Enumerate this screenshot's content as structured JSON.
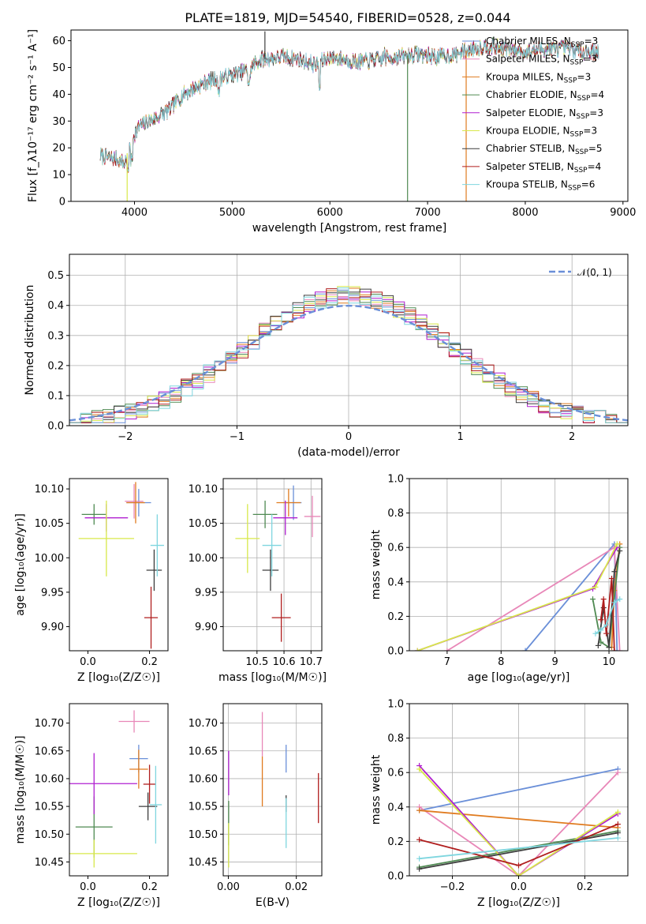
{
  "figure_title": "PLATE=1819, MJD=54540, FIBERID=0528, z=0.044",
  "colors": {
    "Chabrier MILES": "#6a8fd8",
    "Salpeter MILES": "#e887b8",
    "Kroupa MILES": "#e07b1f",
    "Chabrier ELODIE": "#4f8a52",
    "Salpeter ELODIE": "#b01fd0",
    "Kroupa ELODIE": "#d8e84a",
    "Chabrier STELIB": "#3d3d3d",
    "Salpeter STELIB": "#b01e1e",
    "Kroupa STELIB": "#7fd6df",
    "normal_curve": "#6a8fd8",
    "grid": "#b0b0b0"
  },
  "chart_data": [
    {
      "id": "spectrum",
      "type": "line",
      "title": "PLATE=1819, MJD=54540, FIBERID=0528, z=0.044",
      "xlabel": "wavelength [Angstrom, rest frame]",
      "ylabel": "Flux [f_λ10⁻¹⁷ erg cm⁻² s⁻¹ A⁻¹]",
      "xlim": [
        3350,
        9050
      ],
      "ylim": [
        0,
        64
      ],
      "xticks": [
        "4000",
        "5000",
        "6000",
        "7000",
        "8000",
        "9000"
      ],
      "yticks": [
        "0",
        "10",
        "20",
        "30",
        "40",
        "50",
        "60"
      ],
      "grid": false,
      "legend": "upper right",
      "legend_entries": [
        {
          "label": "Chabrier MILES, N",
          "sub": "SSP",
          "tail": "=3"
        },
        {
          "label": "Salpeter MILES, N",
          "sub": "SSP",
          "tail": "=3"
        },
        {
          "label": "Kroupa MILES, N",
          "sub": "SSP",
          "tail": "=3"
        },
        {
          "label": "Chabrier ELODIE, N",
          "sub": "SSP",
          "tail": "=4"
        },
        {
          "label": "Salpeter ELODIE, N",
          "sub": "SSP",
          "tail": "=3"
        },
        {
          "label": "Kroupa ELODIE, N",
          "sub": "SSP",
          "tail": "=3"
        },
        {
          "label": "Chabrier STELIB, N",
          "sub": "SSP",
          "tail": "=5"
        },
        {
          "label": "Salpeter STELIB, N",
          "sub": "SSP",
          "tail": "=4"
        },
        {
          "label": "Kroupa STELIB, N",
          "sub": "SSP",
          "tail": "=6"
        }
      ],
      "continuum": {
        "x": [
          3650,
          3800,
          3900,
          3950,
          4050,
          4200,
          4350,
          4500,
          4700,
          4850,
          5000,
          5150,
          5250,
          5300,
          5500,
          5700,
          5850,
          5900,
          6000,
          6300,
          6500,
          6700,
          6900,
          7100,
          7300,
          7450,
          7600,
          7800,
          8000,
          8200,
          8400,
          8600,
          8750
        ],
        "y": [
          17,
          16,
          14,
          22,
          28,
          31,
          34,
          40,
          44,
          46,
          47,
          49,
          52,
          53,
          54,
          53,
          51,
          52,
          54,
          52,
          53,
          54,
          55,
          54,
          55,
          57,
          58,
          57,
          56,
          57,
          57,
          56,
          56
        ]
      },
      "spikes": [
        {
          "x": 3925,
          "y": 0,
          "color": "#d8e84a"
        },
        {
          "x": 5335,
          "y": 63.5,
          "color": "#3d3d3d"
        },
        {
          "x": 6795,
          "y": 0,
          "color": "#4f8a52"
        },
        {
          "x": 7395,
          "y": 0,
          "color": "#e07b1f"
        }
      ]
    },
    {
      "id": "residuals",
      "type": "line",
      "xlabel": "(data-model)/error",
      "ylabel": "Normed distribution",
      "xlim": [
        -2.5,
        2.5
      ],
      "ylim": [
        0,
        0.57
      ],
      "xticks": [
        "−2",
        "−1",
        "0",
        "1",
        "2"
      ],
      "yticks": [
        "0.0",
        "0.1",
        "0.2",
        "0.3",
        "0.4",
        "0.5"
      ],
      "grid": true,
      "legend": "upper right",
      "legend_label": "𝒩(0, 1)",
      "hist_range": [
        -2.5,
        2.5
      ],
      "hist_bins": 50,
      "bin_width": 0.1
    },
    {
      "id": "age-vs-Z",
      "type": "scatter",
      "xlabel": "Z [log₁₀(Z/Z☉)]",
      "ylabel": "age  [log₁₀(age/yr)]",
      "xlim": [
        -0.06,
        0.26
      ],
      "ylim": [
        9.865,
        10.115
      ],
      "xticks": [
        "0.0",
        "0.2"
      ],
      "yticks": [
        "9.90",
        "9.95",
        "10.00",
        "10.05",
        "10.10"
      ],
      "grid": false,
      "points": [
        {
          "series": "Chabrier MILES",
          "x": 0.165,
          "y": 10.08,
          "xerr": 0.04,
          "yerr": 0.02
        },
        {
          "series": "Salpeter MILES",
          "x": 0.15,
          "y": 10.082,
          "xerr": 0.03,
          "yerr": 0.025
        },
        {
          "series": "Kroupa MILES",
          "x": 0.155,
          "y": 10.08,
          "xerr": 0.03,
          "yerr": 0.03
        },
        {
          "series": "Chabrier ELODIE",
          "x": 0.02,
          "y": 10.063,
          "xerr": 0.04,
          "yerr": 0.015
        },
        {
          "series": "Salpeter ELODIE",
          "x": 0.06,
          "y": 10.058,
          "xerr": 0.07,
          "yerr": 0.02
        },
        {
          "series": "Kroupa ELODIE",
          "x": 0.06,
          "y": 10.028,
          "xerr": 0.09,
          "yerr": 0.055
        },
        {
          "series": "Chabrier STELIB",
          "x": 0.215,
          "y": 9.982,
          "xerr": 0.025,
          "yerr": 0.03
        },
        {
          "series": "Salpeter STELIB",
          "x": 0.205,
          "y": 9.913,
          "xerr": 0.022,
          "yerr": 0.045
        },
        {
          "series": "Kroupa STELIB",
          "x": 0.225,
          "y": 10.018,
          "xerr": 0.022,
          "yerr": 0.045
        }
      ]
    },
    {
      "id": "age-vs-mass",
      "type": "scatter",
      "xlabel": "mass [log₁₀(M/M☉)]",
      "ylabel": "",
      "xlim": [
        10.375,
        10.74
      ],
      "ylim": [
        9.865,
        10.115
      ],
      "xticks": [
        "10.5",
        "10.6",
        "10.7"
      ],
      "yticks": [
        "9.90",
        "9.95",
        "10.00",
        "10.05",
        "10.10"
      ],
      "grid": true,
      "points": [
        {
          "series": "Chabrier MILES",
          "x": 10.635,
          "y": 10.08,
          "xerr": 0.03,
          "yerr": 0.025
        },
        {
          "series": "Salpeter MILES",
          "x": 10.705,
          "y": 10.06,
          "xerr": 0.03,
          "yerr": 0.03
        },
        {
          "series": "Kroupa MILES",
          "x": 10.617,
          "y": 10.08,
          "xerr": 0.045,
          "yerr": 0.02
        },
        {
          "series": "Chabrier ELODIE",
          "x": 10.53,
          "y": 10.063,
          "xerr": 0.045,
          "yerr": 0.02
        },
        {
          "series": "Salpeter ELODIE",
          "x": 10.605,
          "y": 10.058,
          "xerr": 0.045,
          "yerr": 0.025
        },
        {
          "series": "Kroupa ELODIE",
          "x": 10.465,
          "y": 10.028,
          "xerr": 0.045,
          "yerr": 0.05
        },
        {
          "series": "Chabrier STELIB",
          "x": 10.55,
          "y": 9.982,
          "xerr": 0.03,
          "yerr": 0.03
        },
        {
          "series": "Salpeter STELIB",
          "x": 10.59,
          "y": 9.913,
          "xerr": 0.035,
          "yerr": 0.035
        },
        {
          "series": "Kroupa STELIB",
          "x": 10.555,
          "y": 10.018,
          "xerr": 0.035,
          "yerr": 0.045
        }
      ]
    },
    {
      "id": "weight-vs-age",
      "type": "line",
      "xlabel": "age  [log₁₀(age/yr)]",
      "ylabel": "mass weight",
      "xlim": [
        6.3,
        10.35
      ],
      "ylim": [
        0,
        1.0
      ],
      "xticks": [
        "7",
        "8",
        "9",
        "10"
      ],
      "yticks": [
        "0.0",
        "0.2",
        "0.4",
        "0.6",
        "0.8",
        "1.0"
      ],
      "grid": true,
      "series": [
        {
          "name": "Chabrier MILES",
          "x": [
            8.45,
            10.1,
            10.15
          ],
          "y": [
            0.0,
            0.62,
            0.0
          ]
        },
        {
          "name": "Salpeter MILES",
          "x": [
            7.0,
            10.1,
            10.2
          ],
          "y": [
            0.0,
            0.6,
            0.0
          ]
        },
        {
          "name": "Kroupa MILES",
          "x": [
            10.05,
            10.1,
            10.2
          ],
          "y": [
            0.02,
            0.35,
            0.62
          ]
        },
        {
          "name": "Chabrier ELODIE",
          "x": [
            9.7,
            9.85,
            10.0,
            10.2
          ],
          "y": [
            0.3,
            0.05,
            0.02,
            0.6
          ]
        },
        {
          "name": "Salpeter ELODIE",
          "x": [
            6.45,
            9.7,
            10.15
          ],
          "y": [
            0.0,
            0.36,
            0.6
          ]
        },
        {
          "name": "Kroupa ELODIE",
          "x": [
            6.45,
            9.75,
            10.15
          ],
          "y": [
            0.0,
            0.37,
            0.62
          ]
        },
        {
          "name": "Chabrier STELIB",
          "x": [
            9.8,
            9.9,
            10.0,
            10.1,
            10.2
          ],
          "y": [
            0.03,
            0.25,
            0.02,
            0.46,
            0.58
          ]
        },
        {
          "name": "Salpeter STELIB",
          "x": [
            9.85,
            9.9,
            9.95,
            10.05,
            10.1
          ],
          "y": [
            0.18,
            0.3,
            0.1,
            0.42,
            0.0
          ]
        },
        {
          "name": "Kroupa STELIB",
          "x": [
            9.75,
            9.85,
            9.95,
            10.1,
            10.2
          ],
          "y": [
            0.1,
            0.12,
            0.15,
            0.28,
            0.3
          ]
        }
      ]
    },
    {
      "id": "mass-vs-Z",
      "type": "scatter",
      "xlabel": "Z [log₁₀(Z/Z☉)]",
      "ylabel": "mass [log₁₀(M/M☉)]",
      "xlim": [
        -0.06,
        0.26
      ],
      "ylim": [
        10.425,
        10.735
      ],
      "xticks": [
        "0.0",
        "0.2"
      ],
      "yticks": [
        "10.45",
        "10.50",
        "10.55",
        "10.60",
        "10.65",
        "10.70"
      ],
      "grid": false,
      "points": [
        {
          "series": "Chabrier MILES",
          "x": 0.165,
          "y": 10.636,
          "xerr": 0.03,
          "yerr": 0.025
        },
        {
          "series": "Salpeter MILES",
          "x": 0.15,
          "y": 10.703,
          "xerr": 0.05,
          "yerr": 0.02
        },
        {
          "series": "Kroupa MILES",
          "x": 0.165,
          "y": 10.617,
          "xerr": 0.03,
          "yerr": 0.035
        },
        {
          "series": "Chabrier ELODIE",
          "x": 0.02,
          "y": 10.513,
          "xerr": 0.06,
          "yerr": 0.055
        },
        {
          "series": "Salpeter ELODIE",
          "x": 0.02,
          "y": 10.591,
          "xerr": 0.14,
          "yerr": 0.055
        },
        {
          "series": "Kroupa ELODIE",
          "x": 0.02,
          "y": 10.465,
          "xerr": 0.14,
          "yerr": 0.025
        },
        {
          "series": "Chabrier STELIB",
          "x": 0.195,
          "y": 10.55,
          "xerr": 0.03,
          "yerr": 0.025
        },
        {
          "series": "Salpeter STELIB",
          "x": 0.2,
          "y": 10.59,
          "xerr": 0.02,
          "yerr": 0.035
        },
        {
          "series": "Kroupa STELIB",
          "x": 0.22,
          "y": 10.553,
          "xerr": 0.02,
          "yerr": 0.07
        }
      ]
    },
    {
      "id": "mass-vs-EBV",
      "type": "scatter",
      "xlabel": "E(B-V)",
      "ylabel": "",
      "xlim": [
        -0.0015,
        0.0275
      ],
      "ylim": [
        10.425,
        10.735
      ],
      "xticks": [
        "0.00",
        "0.02"
      ],
      "yticks": [
        "10.45",
        "10.50",
        "10.55",
        "10.60",
        "10.65",
        "10.70"
      ],
      "grid": true,
      "points": [
        {
          "series": "Chabrier MILES",
          "x": 0.017,
          "y": 10.636,
          "xerr": 0,
          "yerr": 0.025
        },
        {
          "series": "Salpeter MILES",
          "x": 0.01,
          "y": 10.68,
          "xerr": 0,
          "yerr": 0.04
        },
        {
          "series": "Kroupa MILES",
          "x": 0.01,
          "y": 10.595,
          "xerr": 0,
          "yerr": 0.045
        },
        {
          "series": "Chabrier ELODIE",
          "x": 0.0001,
          "y": 10.52,
          "xerr": 0,
          "yerr": 0.04
        },
        {
          "series": "Salpeter ELODIE",
          "x": 0.0001,
          "y": 10.61,
          "xerr": 0,
          "yerr": 0.04
        },
        {
          "series": "Kroupa ELODIE",
          "x": 0.0001,
          "y": 10.48,
          "xerr": 0,
          "yerr": 0.04
        },
        {
          "series": "Chabrier STELIB",
          "x": 0.017,
          "y": 10.555,
          "xerr": 0,
          "yerr": 0.015
        },
        {
          "series": "Salpeter STELIB",
          "x": 0.0265,
          "y": 10.565,
          "xerr": 0,
          "yerr": 0.045
        },
        {
          "series": "Kroupa STELIB",
          "x": 0.017,
          "y": 10.52,
          "xerr": 0,
          "yerr": 0.045
        }
      ]
    },
    {
      "id": "weight-vs-Z",
      "type": "line",
      "xlabel": "Z [log₁₀(Z/Z☉)]",
      "ylabel": "mass weight",
      "xlim": [
        -0.33,
        0.33
      ],
      "ylim": [
        0,
        1.0
      ],
      "xticks": [
        "−0.2",
        "0.0",
        "0.2"
      ],
      "yticks": [
        "0.0",
        "0.2",
        "0.4",
        "0.6",
        "0.8",
        "1.0"
      ],
      "grid": true,
      "series": [
        {
          "name": "Chabrier MILES",
          "x": [
            -0.3,
            0.3
          ],
          "y": [
            0.38,
            0.62
          ]
        },
        {
          "name": "Salpeter MILES",
          "x": [
            -0.3,
            0.0,
            0.3
          ],
          "y": [
            0.4,
            0.0,
            0.6
          ]
        },
        {
          "name": "Kroupa MILES",
          "x": [
            -0.3,
            0.3
          ],
          "y": [
            0.38,
            0.28
          ]
        },
        {
          "name": "Chabrier ELODIE",
          "x": [
            -0.3,
            0.3
          ],
          "y": [
            0.05,
            0.26
          ]
        },
        {
          "name": "Salpeter ELODIE",
          "x": [
            -0.3,
            0.0,
            0.3
          ],
          "y": [
            0.64,
            0.0,
            0.36
          ]
        },
        {
          "name": "Kroupa ELODIE",
          "x": [
            -0.3,
            0.0,
            0.3
          ],
          "y": [
            0.62,
            0.0,
            0.37
          ]
        },
        {
          "name": "Chabrier STELIB",
          "x": [
            -0.3,
            0.3
          ],
          "y": [
            0.04,
            0.25
          ]
        },
        {
          "name": "Salpeter STELIB",
          "x": [
            -0.3,
            0.0,
            0.3
          ],
          "y": [
            0.21,
            0.06,
            0.3
          ]
        },
        {
          "name": "Kroupa STELIB",
          "x": [
            -0.3,
            0.3
          ],
          "y": [
            0.1,
            0.22
          ]
        }
      ]
    }
  ]
}
